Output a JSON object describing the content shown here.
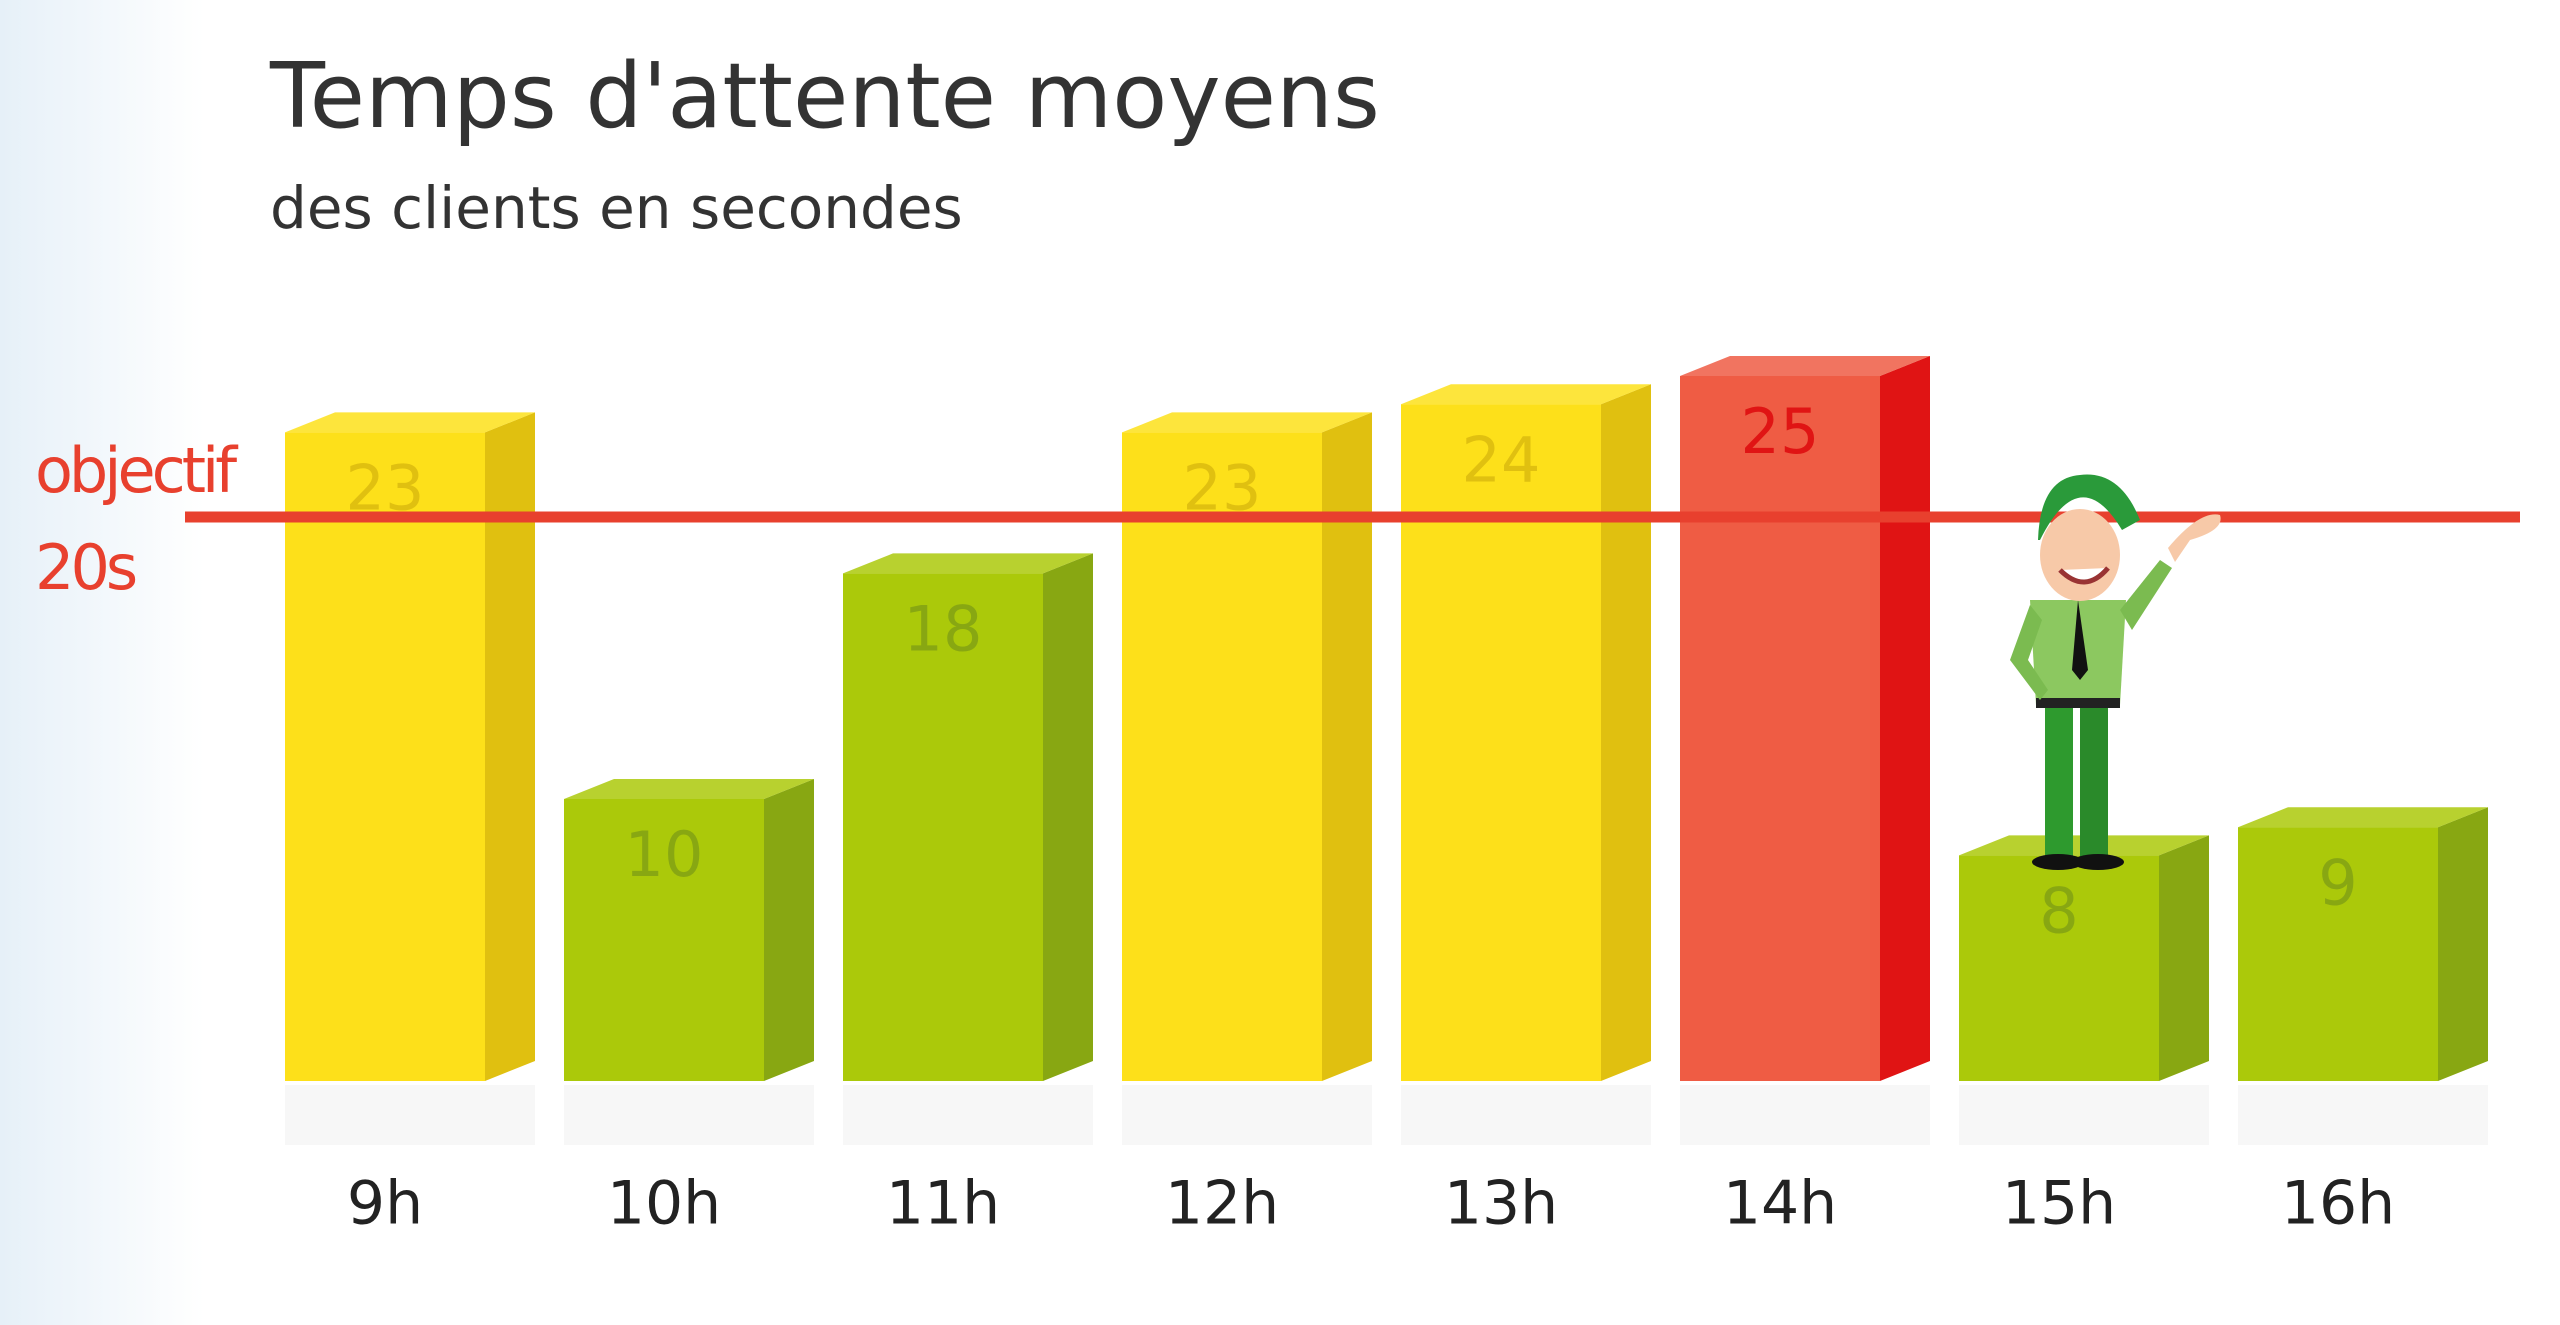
{
  "chart_data": {
    "type": "bar3d",
    "title": "Temps d'attente moyens",
    "subtitle": "des clients en secondes",
    "categories": [
      "9h",
      "10h",
      "11h",
      "12h",
      "13h",
      "14h",
      "15h",
      "16h"
    ],
    "values": [
      23,
      10,
      18,
      23,
      24,
      25,
      8,
      9
    ],
    "colors": [
      "#fde01a",
      "#abc90a",
      "#abc90a",
      "#fde01a",
      "#fde01a",
      "#ef5c44",
      "#abc90a",
      "#abc90a"
    ],
    "side_colors": [
      "#e0c010",
      "#88a712",
      "#88a712",
      "#e0c010",
      "#e0c010",
      "#e01414",
      "#88a712",
      "#88a712"
    ],
    "target": {
      "label": "objectif",
      "value": 20,
      "value_label": "20s",
      "color": "#e8402e"
    }
  }
}
